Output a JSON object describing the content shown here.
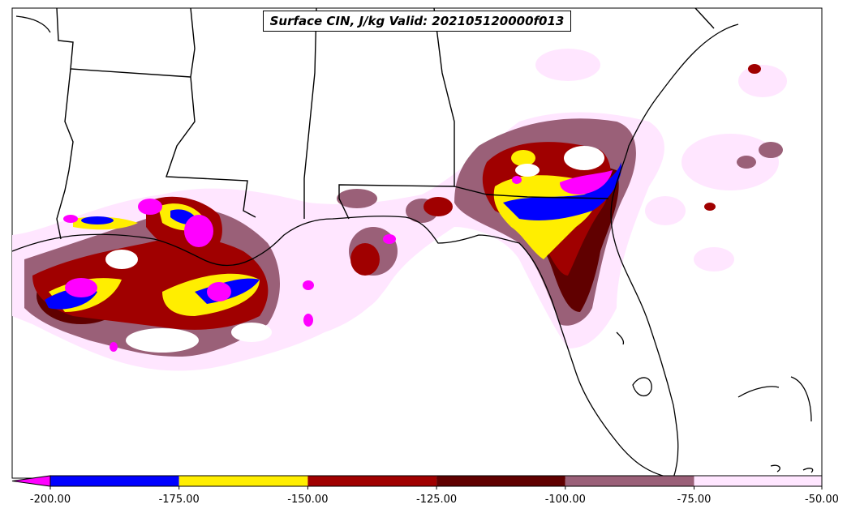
{
  "map": {
    "title": "Surface CIN, J/kg Valid: 202105120000f013",
    "region_features": [
      "coastline",
      "state-borders",
      "gulf-of-mexico",
      "florida",
      "alabama",
      "mississippi",
      "louisiana",
      "georgia"
    ]
  },
  "legend": {
    "colors": {
      "lt_-200": "#ff00ff",
      "-200_-175": "#0000ff",
      "-175_-150": "#ffee00",
      "-150_-125": "#a00000",
      "-125_-100": "#600000",
      "-100_-75": "#9a6078",
      "-75_-50": "#ffe6ff"
    },
    "ticks": [
      "-200.00",
      "-175.00",
      "-150.00",
      "-125.00",
      "-100.00",
      "-75.00",
      "-50.00"
    ]
  }
}
